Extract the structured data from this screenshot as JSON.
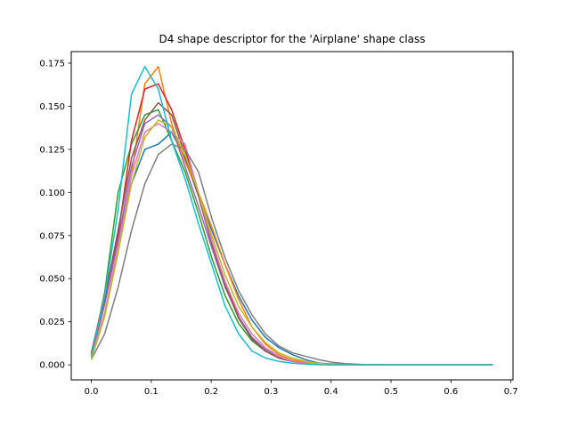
{
  "chart_data": {
    "type": "line",
    "title": "D4 shape descriptor for the 'Airplane' shape class",
    "xlabel": "",
    "ylabel": "",
    "xlim": [
      -0.0335,
      0.7035
    ],
    "ylim": [
      -0.0087,
      0.1817
    ],
    "grid": false,
    "legend": "none",
    "x_ticks": [
      {
        "value": 0.0,
        "label": "0.0"
      },
      {
        "value": 0.1,
        "label": "0.1"
      },
      {
        "value": 0.2,
        "label": "0.2"
      },
      {
        "value": 0.3,
        "label": "0.3"
      },
      {
        "value": 0.4,
        "label": "0.4"
      },
      {
        "value": 0.5,
        "label": "0.5"
      },
      {
        "value": 0.6,
        "label": "0.6"
      },
      {
        "value": 0.7,
        "label": "0.7"
      }
    ],
    "y_ticks": [
      {
        "value": 0.0,
        "label": "0.000"
      },
      {
        "value": 0.025,
        "label": "0.025"
      },
      {
        "value": 0.05,
        "label": "0.050"
      },
      {
        "value": 0.075,
        "label": "0.075"
      },
      {
        "value": 0.1,
        "label": "0.100"
      },
      {
        "value": 0.125,
        "label": "0.125"
      },
      {
        "value": 0.15,
        "label": "0.150"
      },
      {
        "value": 0.175,
        "label": "0.175"
      }
    ],
    "x": [
      0.0,
      0.0223,
      0.0447,
      0.067,
      0.0893,
      0.1117,
      0.134,
      0.1563,
      0.1787,
      0.201,
      0.2233,
      0.2457,
      0.268,
      0.2903,
      0.3127,
      0.335,
      0.3573,
      0.3797,
      0.402,
      0.4243,
      0.4467,
      0.469,
      0.4913,
      0.5137,
      0.536,
      0.5583,
      0.5807,
      0.603,
      0.6253,
      0.6477,
      0.67
    ],
    "series": [
      {
        "color": "#1f77b4",
        "values": [
          0.006,
          0.04,
          0.075,
          0.105,
          0.125,
          0.128,
          0.135,
          0.12,
          0.098,
          0.078,
          0.058,
          0.04,
          0.026,
          0.016,
          0.01,
          0.006,
          0.003,
          0.001,
          0.0005,
          0.0002,
          0.0001,
          0,
          0,
          0,
          0,
          0,
          0,
          0,
          0,
          0,
          0
        ]
      },
      {
        "color": "#ff7f0e",
        "values": [
          0.004,
          0.03,
          0.065,
          0.11,
          0.163,
          0.173,
          0.14,
          0.118,
          0.1,
          0.08,
          0.058,
          0.038,
          0.022,
          0.012,
          0.006,
          0.003,
          0.0015,
          0.0007,
          0.0003,
          0.0001,
          0,
          0,
          0,
          0,
          0,
          0,
          0,
          0,
          0,
          0,
          0
        ]
      },
      {
        "color": "#2ca02c",
        "values": [
          0.005,
          0.042,
          0.1,
          0.128,
          0.145,
          0.148,
          0.13,
          0.112,
          0.088,
          0.062,
          0.04,
          0.024,
          0.014,
          0.008,
          0.004,
          0.002,
          0.001,
          0.0004,
          0.0001,
          0,
          0,
          0,
          0,
          0,
          0,
          0,
          0,
          0,
          0,
          0,
          0
        ]
      },
      {
        "color": "#d62728",
        "values": [
          0.007,
          0.04,
          0.075,
          0.13,
          0.16,
          0.163,
          0.148,
          0.125,
          0.1,
          0.072,
          0.048,
          0.028,
          0.015,
          0.008,
          0.004,
          0.002,
          0.0008,
          0.0003,
          0.0001,
          0,
          0,
          0,
          0,
          0,
          0,
          0,
          0,
          0,
          0,
          0,
          0
        ]
      },
      {
        "color": "#9467bd",
        "values": [
          0.005,
          0.035,
          0.072,
          0.115,
          0.14,
          0.145,
          0.138,
          0.115,
          0.092,
          0.068,
          0.045,
          0.028,
          0.016,
          0.009,
          0.005,
          0.002,
          0.001,
          0.0004,
          0.0001,
          0,
          0,
          0,
          0,
          0,
          0,
          0,
          0,
          0,
          0,
          0,
          0
        ]
      },
      {
        "color": "#8c564b",
        "values": [
          0.006,
          0.038,
          0.078,
          0.12,
          0.142,
          0.152,
          0.145,
          0.122,
          0.098,
          0.07,
          0.046,
          0.027,
          0.015,
          0.008,
          0.004,
          0.002,
          0.001,
          0.0003,
          0.0001,
          0,
          0,
          0,
          0,
          0,
          0,
          0,
          0,
          0,
          0,
          0,
          0
        ]
      },
      {
        "color": "#e377c2",
        "values": [
          0.004,
          0.03,
          0.068,
          0.11,
          0.135,
          0.14,
          0.135,
          0.128,
          0.1,
          0.072,
          0.048,
          0.03,
          0.018,
          0.01,
          0.005,
          0.002,
          0.001,
          0.0004,
          0.0001,
          0,
          0,
          0,
          0,
          0,
          0,
          0,
          0,
          0,
          0,
          0,
          0
        ]
      },
      {
        "color": "#7f7f7f",
        "values": [
          0.003,
          0.018,
          0.045,
          0.078,
          0.105,
          0.122,
          0.128,
          0.125,
          0.112,
          0.085,
          0.062,
          0.043,
          0.029,
          0.018,
          0.011,
          0.007,
          0.005,
          0.003,
          0.0015,
          0.0007,
          0.0003,
          0.0001,
          0,
          0,
          0,
          0,
          0,
          0,
          0,
          0,
          0
        ]
      },
      {
        "color": "#bcbd22",
        "values": [
          0.003,
          0.028,
          0.065,
          0.105,
          0.132,
          0.142,
          0.138,
          0.122,
          0.1,
          0.075,
          0.052,
          0.034,
          0.022,
          0.013,
          0.007,
          0.004,
          0.002,
          0.0008,
          0.0003,
          0.0001,
          0,
          0,
          0,
          0,
          0,
          0,
          0,
          0,
          0,
          0,
          0
        ]
      },
      {
        "color": "#17becf",
        "values": [
          0.005,
          0.04,
          0.09,
          0.157,
          0.173,
          0.16,
          0.13,
          0.108,
          0.082,
          0.058,
          0.034,
          0.018,
          0.008,
          0.004,
          0.002,
          0.001,
          0.0004,
          0.0001,
          0,
          0,
          0,
          0,
          0,
          0,
          0,
          0,
          0,
          0,
          0,
          0,
          0
        ]
      }
    ]
  }
}
